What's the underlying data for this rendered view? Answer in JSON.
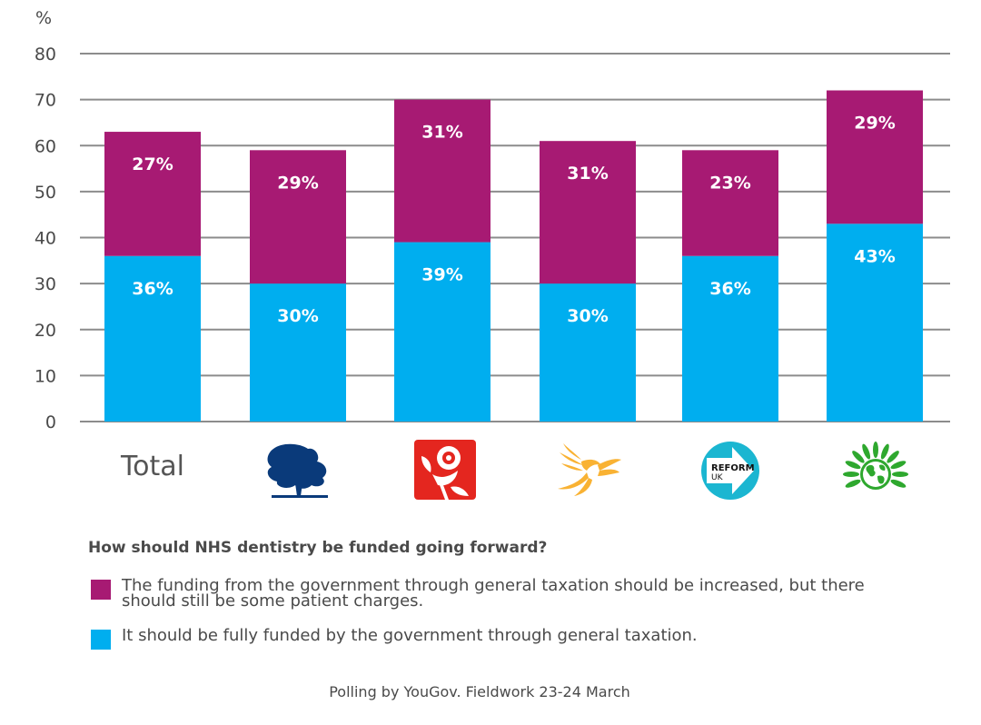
{
  "chart_data": {
    "type": "bar",
    "stacked": true,
    "title": "How should NHS dentistry be funded going forward?",
    "ylabel": "%",
    "xlabel": "",
    "ylim": [
      0,
      80
    ],
    "yticks": [
      0,
      10,
      20,
      30,
      40,
      50,
      60,
      70,
      80
    ],
    "grid": true,
    "categories": [
      "Total",
      "Conservative",
      "Labour",
      "Liberal Democrat",
      "Reform UK",
      "Green"
    ],
    "category_display": {
      "0": "Total"
    },
    "series": [
      {
        "name": "It should be fully funded by the government through general taxation.",
        "color": "#00AEEF",
        "values": [
          36,
          30,
          39,
          30,
          36,
          43
        ]
      },
      {
        "name": "The funding from the government through general taxation should be increased, but there should still be some patient charges.",
        "color": "#A71A73",
        "values": [
          27,
          29,
          31,
          31,
          23,
          29
        ]
      }
    ],
    "label_suffix": "%",
    "legend_position": "bottom"
  },
  "legend": {
    "question": "How should NHS dentistry be funded going forward?",
    "items": [
      {
        "label": "The funding from the government through general taxation should be increased, but there should still be some patient charges.",
        "color": "#A71A73"
      },
      {
        "label": "It should be fully funded by the government through general taxation.",
        "color": "#00AEEF"
      }
    ]
  },
  "axis": {
    "unit": "%"
  },
  "categories_display": {
    "total": "Total"
  },
  "logos": {
    "conservative": "conservative-tree-icon",
    "labour": "labour-rose-icon",
    "libdem": "libdem-bird-icon",
    "reform": "reform-uk-arrow-icon",
    "green": "green-party-globe-icon",
    "reform_text_1": "REFORM",
    "reform_text_2": "UK"
  },
  "footer": "Polling by YouGov. Fieldwork 23-24 March"
}
